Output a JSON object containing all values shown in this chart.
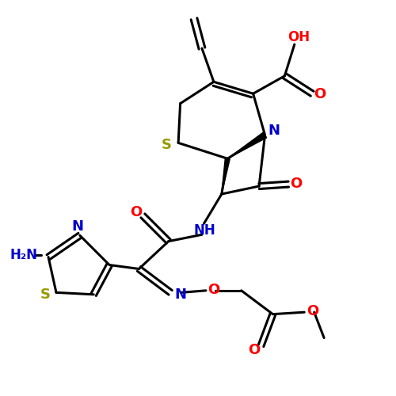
{
  "background": "#ffffff",
  "bond_color": "#000000",
  "S_color": "#999900",
  "N_color": "#0000cc",
  "O_color": "#ff0000",
  "lw": 2.2,
  "figsize": [
    5.0,
    5.0
  ],
  "dpi": 100,
  "xlim": [
    0,
    10
  ],
  "ylim": [
    0,
    10
  ]
}
